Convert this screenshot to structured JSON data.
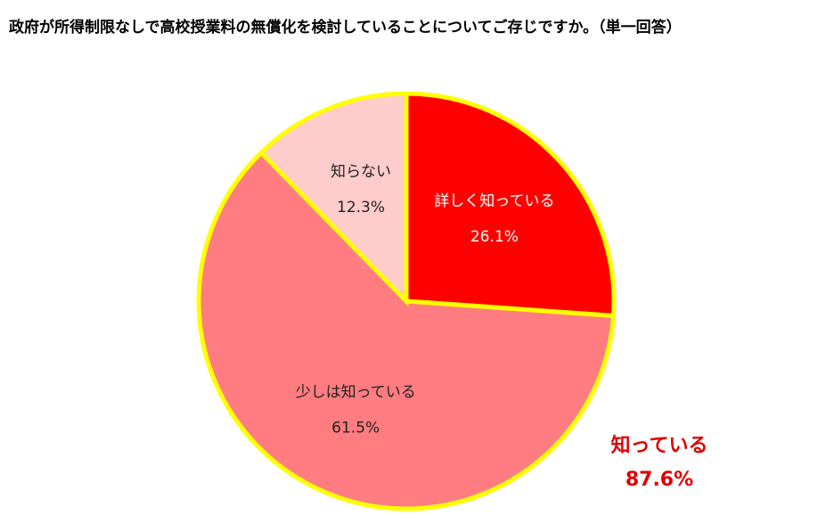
{
  "chart_data": {
    "type": "pie",
    "title": "政府が所得制限なしで高校授業料の無償化を検討していることについてご存じですか。（単一回答）",
    "categories": [
      "詳しく知っている",
      "少しは知っている",
      "知らない"
    ],
    "values": [
      26.1,
      61.5,
      12.3
    ],
    "value_labels": [
      "26.1%",
      "61.5%",
      "12.3%"
    ],
    "colors": [
      "#ff0000",
      "#ff7c80",
      "#ffcccc"
    ],
    "label_colors": [
      "#ffffff",
      "#222222",
      "#222222"
    ],
    "edge_color": "#ffff00",
    "annotation": {
      "text": "知っている",
      "value": 87.6,
      "value_label": "87.6%",
      "color": "#e00000"
    }
  }
}
